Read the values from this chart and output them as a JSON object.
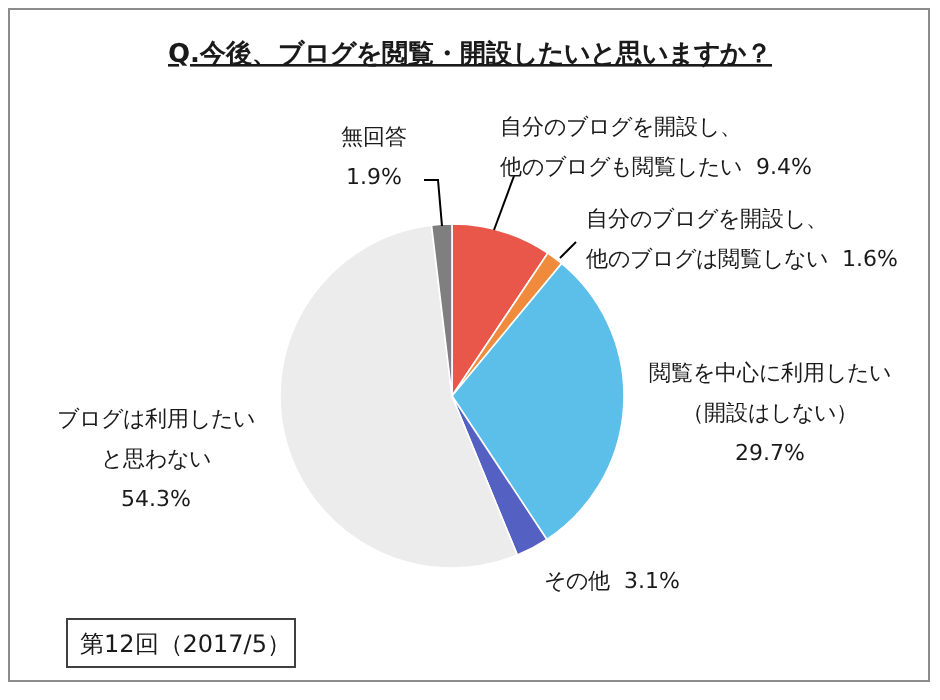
{
  "chart_data": {
    "type": "pie",
    "title": "Q.今後、ブログを閲覧・開設したいと思いますか？",
    "categories": [
      "自分のブログを開設し、他のブログも閲覧したい",
      "自分のブログを開設し、他のブログは閲覧しない",
      "閲覧を中心に利用したい（開設はしない）",
      "その他",
      "ブログは利用したいと思わない",
      "無回答"
    ],
    "values": [
      9.4,
      1.6,
      29.7,
      3.1,
      54.3,
      1.9
    ],
    "value_labels": [
      "9.4%",
      "1.6%",
      "29.7%",
      "3.1%",
      "54.3%",
      "1.9%"
    ],
    "colors": [
      "#e9574b",
      "#f08b3d",
      "#5cbfe9",
      "#5561c2",
      "#ececec",
      "#7f7f7f"
    ],
    "annotations": [
      "第12回（2017/5）"
    ]
  }
}
